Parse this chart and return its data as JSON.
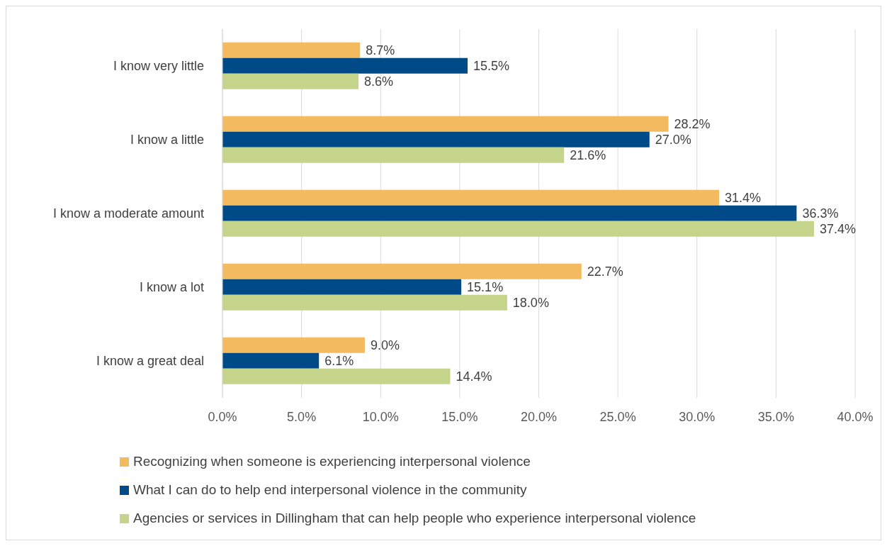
{
  "chart_data": {
    "type": "bar",
    "orientation": "horizontal",
    "categories": [
      "I know very little",
      "I know a little",
      "I know a moderate amount",
      "I know a lot",
      "I know a great deal"
    ],
    "series": [
      {
        "name": "Recognizing when someone is experiencing interpersonal violence",
        "color": "#f4ba5f",
        "values": [
          8.7,
          28.2,
          31.4,
          22.7,
          9.0
        ],
        "value_labels": [
          "8.7%",
          "28.2%",
          "31.4%",
          "22.7%",
          "9.0%"
        ]
      },
      {
        "name": "What I can do to help end interpersonal violence in the community",
        "color": "#004b87",
        "values": [
          15.5,
          27.0,
          36.3,
          15.1,
          6.1
        ],
        "value_labels": [
          "15.5%",
          "27.0%",
          "36.3%",
          "15.1%",
          "6.1%"
        ]
      },
      {
        "name": "Agencies or services in Dillingham that can help people who experience interpersonal violence",
        "color": "#c5d48b",
        "values": [
          8.6,
          21.6,
          37.4,
          18.0,
          14.4
        ],
        "value_labels": [
          "8.6%",
          "21.6%",
          "37.4%",
          "18.0%",
          "14.4%"
        ]
      }
    ],
    "xlim": [
      0,
      40
    ],
    "xticks": [
      {
        "value": 0,
        "label": "0.0%"
      },
      {
        "value": 5,
        "label": "5.0%"
      },
      {
        "value": 10,
        "label": "10.0%"
      },
      {
        "value": 15,
        "label": "15.0%"
      },
      {
        "value": 20,
        "label": "20.0%"
      },
      {
        "value": 25,
        "label": "25.0%"
      },
      {
        "value": 30,
        "label": "30.0%"
      },
      {
        "value": 35,
        "label": "35.0%"
      },
      {
        "value": 40,
        "label": "40.0%"
      }
    ],
    "grid": "x",
    "legend": "bottom"
  }
}
